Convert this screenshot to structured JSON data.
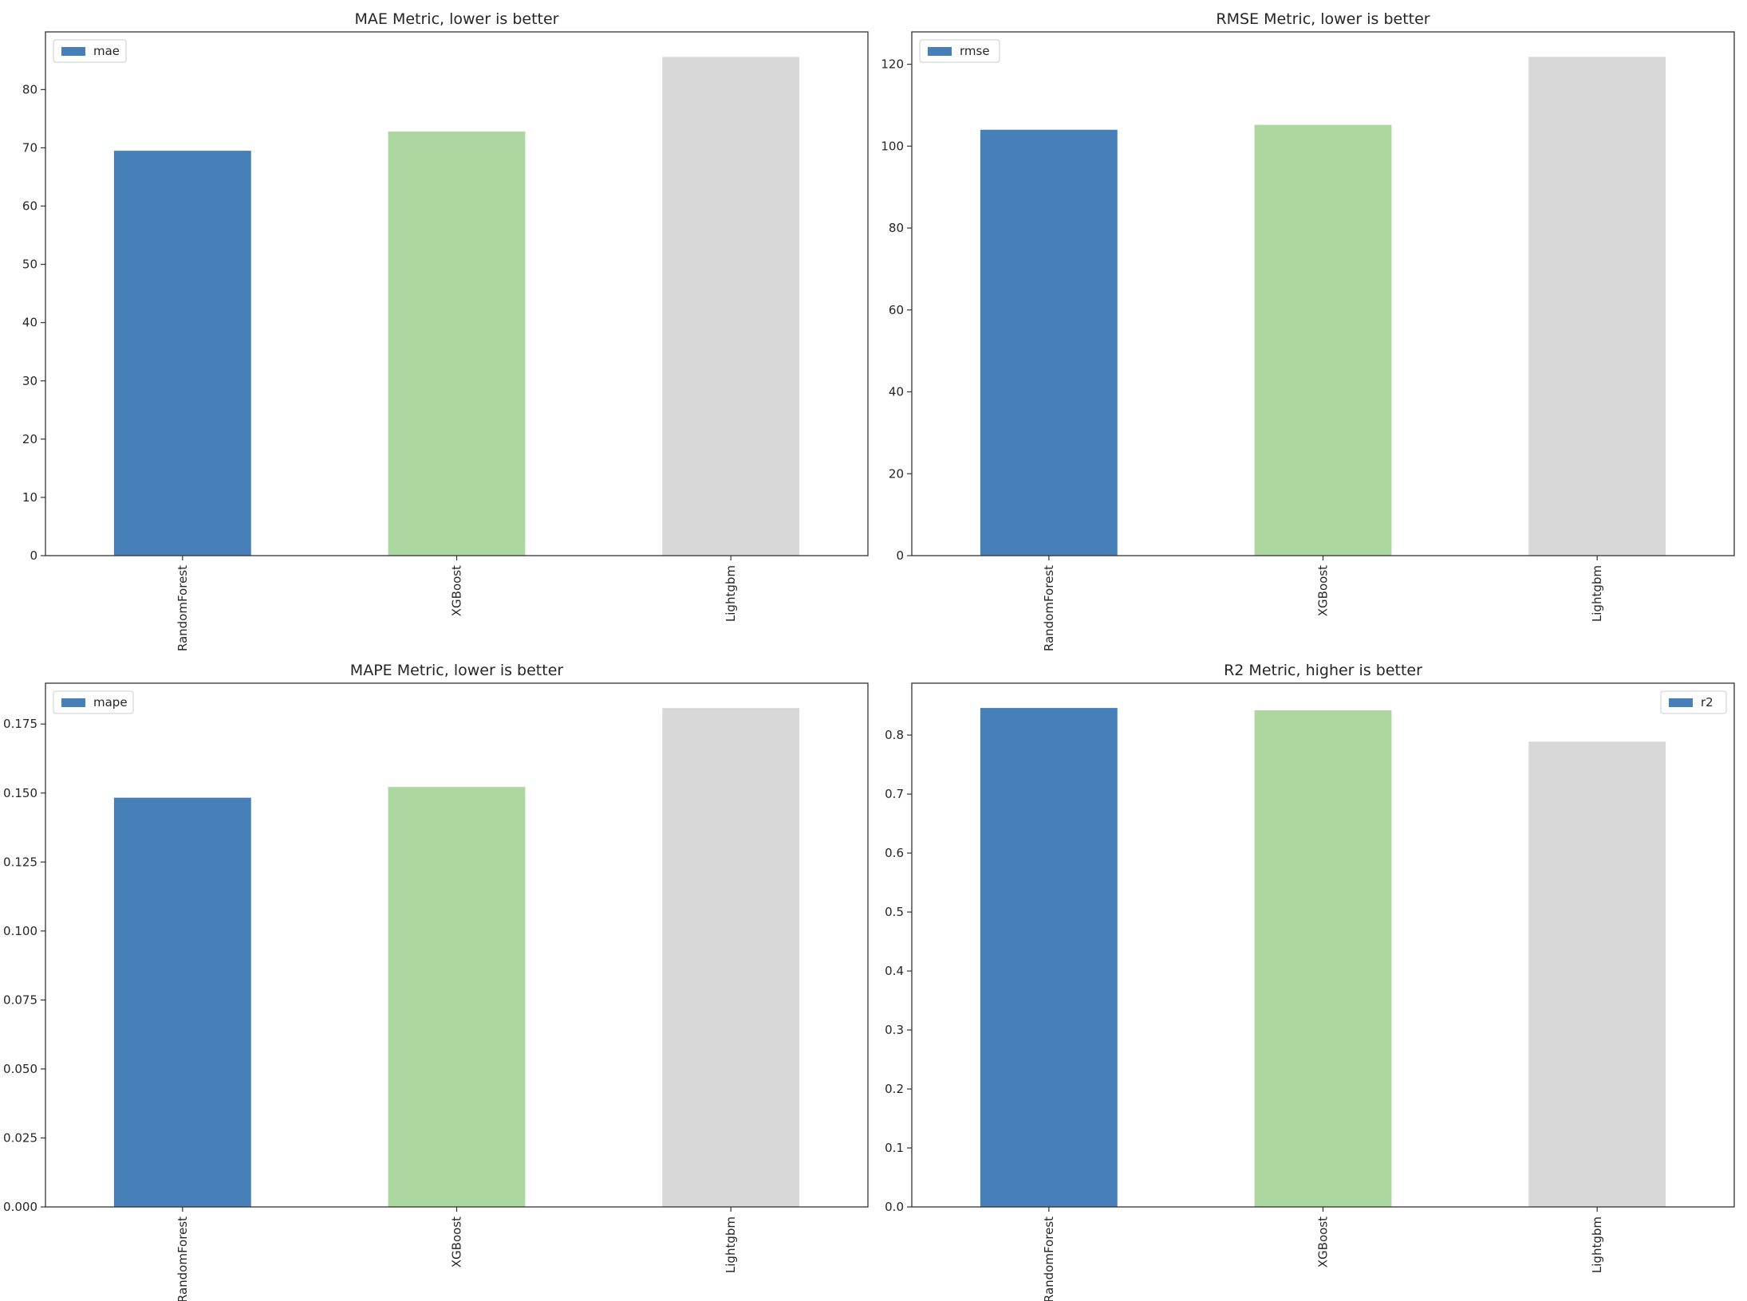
{
  "colors": {
    "RandomForest": "#4780b9",
    "XGBoost": "#acd7a0",
    "Lightgbm": "#d8d8d8",
    "axis": "#333333",
    "legend_border": "#cccccc"
  },
  "chart_data": [
    {
      "type": "bar",
      "title": "MAE Metric, lower is better",
      "categories": [
        "RandomForest",
        "XGBoost",
        "Lightgbm"
      ],
      "series": [
        {
          "name": "mae",
          "values": [
            69.5,
            72.8,
            85.6
          ]
        }
      ],
      "ylim": [
        0,
        89.9
      ],
      "yticks": [
        0,
        10,
        20,
        30,
        40,
        50,
        60,
        70,
        80
      ],
      "ytick_labels": [
        "0",
        "10",
        "20",
        "30",
        "40",
        "50",
        "60",
        "70",
        "80"
      ],
      "legend": "top-left",
      "grid": false,
      "xlabel": "",
      "ylabel": ""
    },
    {
      "type": "bar",
      "title": "RMSE Metric, lower is better",
      "categories": [
        "RandomForest",
        "XGBoost",
        "Lightgbm"
      ],
      "series": [
        {
          "name": "rmse",
          "values": [
            104.0,
            105.2,
            121.8
          ]
        }
      ],
      "ylim": [
        0,
        127.9
      ],
      "yticks": [
        0,
        20,
        40,
        60,
        80,
        100,
        120
      ],
      "ytick_labels": [
        "0",
        "20",
        "40",
        "60",
        "80",
        "100",
        "120"
      ],
      "legend": "top-left",
      "grid": false,
      "xlabel": "",
      "ylabel": ""
    },
    {
      "type": "bar",
      "title": "MAPE Metric, lower is better",
      "categories": [
        "RandomForest",
        "XGBoost",
        "Lightgbm"
      ],
      "series": [
        {
          "name": "mape",
          "values": [
            0.1483,
            0.1522,
            0.1808
          ]
        }
      ],
      "ylim": [
        0,
        0.1898
      ],
      "yticks": [
        0,
        0.025,
        0.05,
        0.075,
        0.1,
        0.125,
        0.15,
        0.175
      ],
      "ytick_labels": [
        "0.000",
        "0.025",
        "0.050",
        "0.075",
        "0.100",
        "0.125",
        "0.150",
        "0.175"
      ],
      "legend": "top-left",
      "grid": false,
      "xlabel": "",
      "ylabel": ""
    },
    {
      "type": "bar",
      "title": "R2 Metric, higher is better",
      "categories": [
        "RandomForest",
        "XGBoost",
        "Lightgbm"
      ],
      "series": [
        {
          "name": "r2",
          "values": [
            0.846,
            0.842,
            0.789
          ]
        }
      ],
      "ylim": [
        0,
        0.888
      ],
      "yticks": [
        0,
        0.1,
        0.2,
        0.3,
        0.4,
        0.5,
        0.6,
        0.7,
        0.8
      ],
      "ytick_labels": [
        "0.0",
        "0.1",
        "0.2",
        "0.3",
        "0.4",
        "0.5",
        "0.6",
        "0.7",
        "0.8"
      ],
      "legend": "top-right",
      "grid": false,
      "xlabel": "",
      "ylabel": ""
    }
  ]
}
